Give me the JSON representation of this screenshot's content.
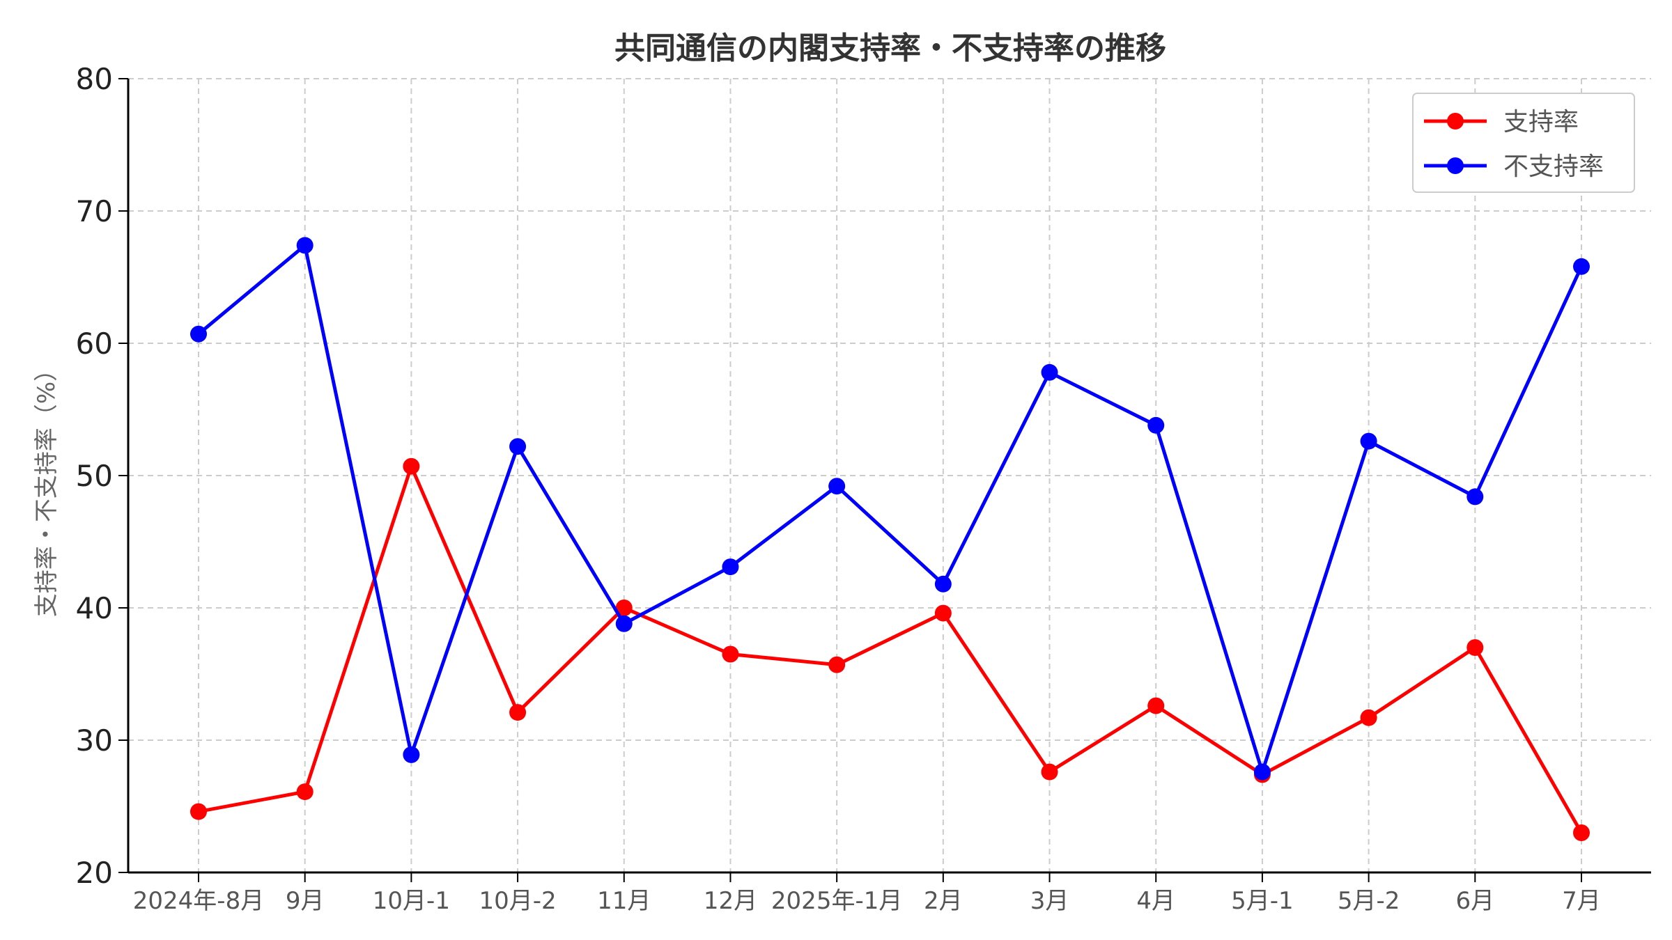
{
  "chart_data": {
    "type": "line",
    "title": "共同通信の内閣支持率・不支持率の推移",
    "xlabel": "",
    "ylabel": "支持率・不支持率（%）",
    "categories": [
      "2024年-8月",
      "9月",
      "10月-1",
      "10月-2",
      "11月",
      "12月",
      "2025年-1月",
      "2月",
      "3月",
      "4月",
      "5月-1",
      "5月-2",
      "6月",
      "7月"
    ],
    "ylim": [
      20,
      80
    ],
    "yticks": [
      20,
      30,
      40,
      50,
      60,
      70,
      80
    ],
    "grid": true,
    "legend_position": "top-right",
    "series": [
      {
        "name": "支持率",
        "color": "#ff0000",
        "values": [
          24.6,
          26.1,
          50.7,
          32.1,
          40.0,
          36.5,
          35.7,
          39.6,
          27.6,
          32.6,
          27.4,
          31.7,
          37.0,
          23.0
        ]
      },
      {
        "name": "不支持率",
        "color": "#0000ff",
        "values": [
          60.7,
          67.4,
          28.9,
          52.2,
          38.8,
          43.1,
          49.2,
          41.8,
          57.8,
          53.8,
          27.6,
          52.6,
          48.4,
          65.8
        ]
      }
    ]
  }
}
